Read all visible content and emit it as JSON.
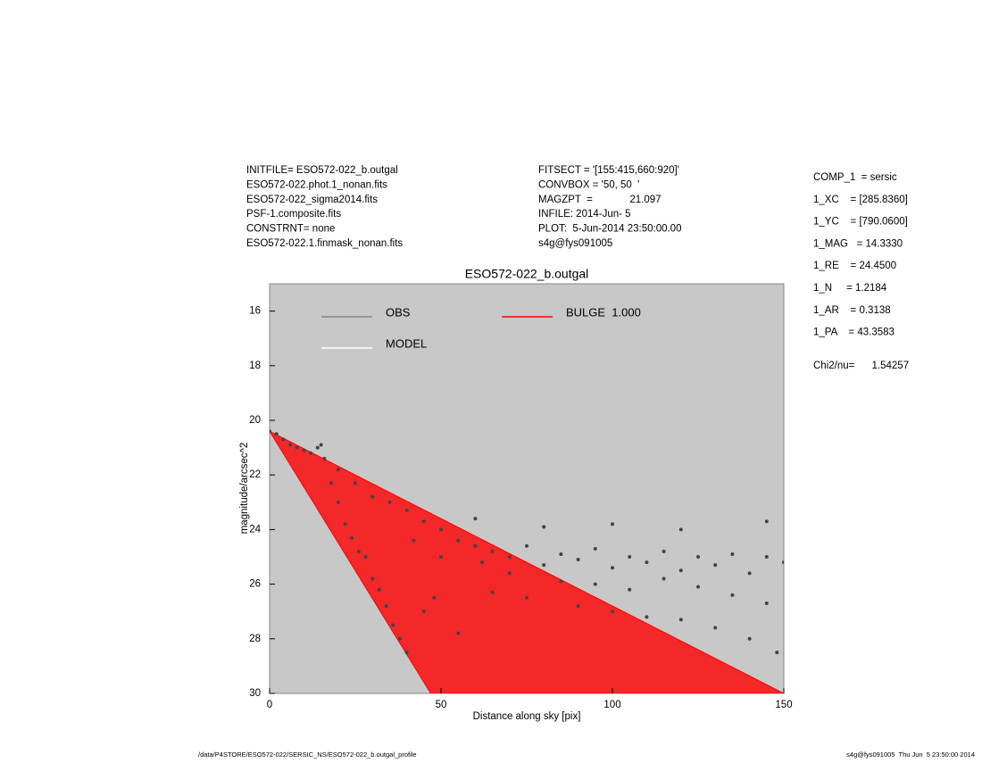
{
  "header": {
    "left": [
      "INITFILE= ESO572-022_b.outgal",
      "ESO572-022.phot.1_nonan.fits",
      "ESO572-022_sigma2014.fits",
      "PSF-1.composite.fits",
      "CONSTRNT= none",
      "ESO572-022.1.finmask_nonan.fits"
    ],
    "middle": [
      "FITSECT = '[155:415,660:920]'",
      "CONVBOX = '50, 50  '",
      "MAGZPT  =             21.097",
      "INFILE: 2014-Jun- 5",
      "PLOT:  5-Jun-2014 23:50:00.00",
      "s4g@fys091005"
    ],
    "params": [
      "COMP_1  = sersic",
      "1_XC    = [285.8360]",
      "1_YC    = [790.0600]",
      "1_MAG   = 14.3330",
      "1_RE    = 24.4500",
      "1_N     = 1.2184",
      "1_AR    = 0.3138",
      "1_PA    = 43.3583"
    ],
    "chi2": "Chi2/nu=      1.54257"
  },
  "footer": {
    "left": "/data/P4STORE/ESO572-022/SERSIC_NS/ESO572-022_b.outgal_profile",
    "right": "s4g@fys091005  Thu Jun  5 23:50:00 2014"
  },
  "chart_data": {
    "type": "scatter",
    "title": "ESO572-022_b.outgal",
    "x_label": "Distance along sky [pix]",
    "y_label": "magnitude/arcsec^2",
    "xlim": [
      0,
      150
    ],
    "ylim": [
      30,
      15
    ],
    "xticks": [
      0,
      50,
      100,
      150
    ],
    "yticks": [
      16,
      18,
      20,
      22,
      24,
      26,
      28,
      30
    ],
    "background": "#c8c8c8",
    "series": [
      {
        "name": "OBS",
        "color": "#444444",
        "x": [
          0,
          2,
          4,
          6,
          8,
          10,
          12,
          14,
          15,
          16,
          18,
          20,
          22,
          24,
          26,
          28,
          30,
          32,
          34,
          36,
          38,
          40,
          20,
          25,
          30,
          35,
          40,
          45,
          50,
          55,
          60,
          62,
          65,
          70,
          75,
          80,
          85,
          90,
          95,
          100,
          105,
          110,
          115,
          120,
          125,
          130,
          135,
          140,
          145,
          150,
          65,
          75,
          90,
          100,
          110,
          120,
          130,
          140,
          148,
          60,
          80,
          100,
          120,
          145,
          48,
          55,
          45,
          70,
          85,
          95,
          105,
          115,
          125,
          135,
          145,
          50,
          42
        ],
        "values": [
          20.4,
          20.5,
          20.7,
          20.9,
          21.0,
          21.1,
          21.2,
          21.0,
          20.9,
          21.4,
          22.3,
          23.0,
          23.8,
          24.3,
          24.8,
          25.0,
          25.8,
          26.2,
          26.8,
          27.5,
          28.0,
          28.5,
          21.8,
          22.3,
          22.8,
          23.0,
          23.3,
          23.7,
          24.0,
          24.4,
          24.6,
          25.2,
          24.8,
          25.0,
          24.6,
          25.3,
          24.9,
          25.1,
          24.7,
          25.4,
          25.0,
          25.2,
          24.8,
          25.5,
          25.0,
          25.3,
          24.9,
          25.6,
          25.0,
          25.2,
          26.3,
          26.5,
          26.8,
          27.0,
          27.2,
          27.3,
          27.6,
          28.0,
          28.5,
          23.6,
          23.9,
          23.8,
          24.0,
          23.7,
          26.5,
          27.8,
          27.0,
          25.6,
          25.9,
          26.0,
          26.2,
          25.8,
          26.1,
          26.4,
          26.7,
          25.0,
          24.4
        ]
      },
      {
        "name": "MODEL",
        "color": "#ffffff",
        "x": [],
        "values": []
      },
      {
        "name": "BULGE  1.000",
        "color": "#ff0000",
        "x": [
          0,
          150,
          47
        ],
        "values": [
          20.4,
          30,
          30
        ]
      }
    ]
  }
}
